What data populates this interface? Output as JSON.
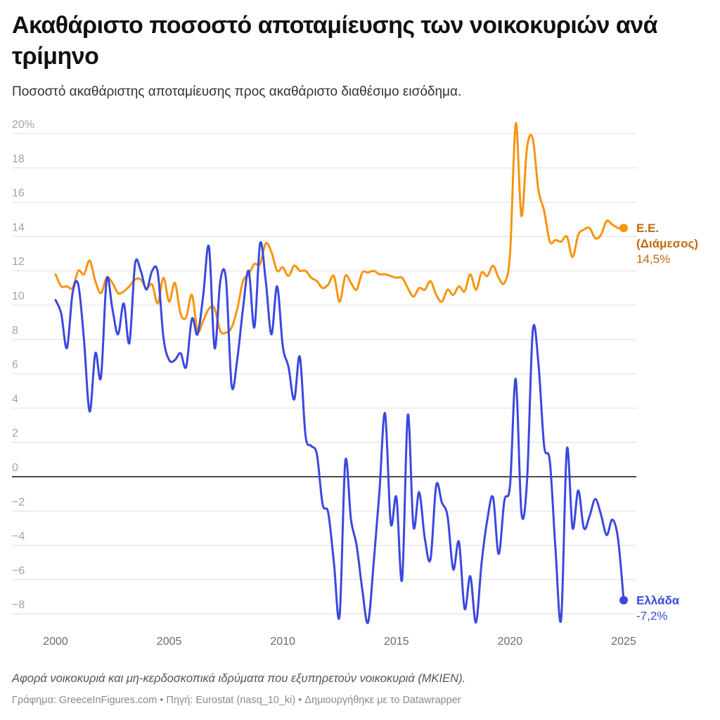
{
  "header": {
    "title": "Ακαθάριστο ποσοστό αποταμίευσης των νοικοκυριών ανά τρίμηνο",
    "subtitle": "Ποσοστό ακαθάριστης αποταμίευσης προς ακαθάριστο διαθέσιμο εισόδημα."
  },
  "footer": {
    "notes": "Αφορά νοικοκυριά και μη-κερδοσκοπικά ιδρύματα που εξυπηρετούν νοικοκυριά (ΜΚΙΕΝ).",
    "byline": "Γράφημα: GreeceInFigures.com • Πηγή: Eurostat (nasq_10_ki) • Δημιουργήθηκε με το Datawrapper"
  },
  "colors": {
    "eu_line": "#f7940f",
    "eu_label": "#c2690c",
    "greece_line": "#3b47e0",
    "greece_label": "#3b47e0",
    "grid": "#e6e6e6",
    "zero_line": "#333333"
  },
  "chart_data": {
    "type": "line",
    "title": "Ακαθάριστο ποσοστό αποταμίευσης των νοικοκυριών ανά τρίμηνο",
    "xlabel": "",
    "ylabel": "",
    "x_start": "2000Q1",
    "x_end": "2025Q1",
    "x_step": "quarter",
    "xlim": [
      2000,
      2025
    ],
    "ylim": [
      -8.6,
      20
    ],
    "y_ticks": [
      20,
      18,
      16,
      14,
      12,
      10,
      8,
      6,
      4,
      2,
      0,
      -2,
      -4,
      -6,
      -8
    ],
    "y_tick_labels": [
      "20%",
      "18",
      "16",
      "14",
      "12",
      "10",
      "8",
      "6",
      "4",
      "2",
      "0",
      "−2",
      "−4",
      "−6",
      "−8"
    ],
    "x_ticks": [
      2000,
      2005,
      2010,
      2015,
      2020,
      2025
    ],
    "x_tick_labels": [
      "2000",
      "2005",
      "2010",
      "2015",
      "2020",
      "2025"
    ],
    "grid": true,
    "legend": "direct-labels-right",
    "series": [
      {
        "name": "Ε.Ε. (Διάμεσος)",
        "label_lines": [
          "Ε.Ε.",
          "(Διάμεσος)"
        ],
        "last_value_label": "14,5%",
        "values": [
          11.8,
          11.1,
          11.1,
          11.0,
          12.0,
          11.8,
          12.6,
          11.4,
          10.7,
          11.6,
          11.3,
          10.7,
          10.8,
          11.1,
          11.5,
          11.5,
          11.0,
          11.2,
          10.1,
          11.6,
          10.2,
          11.3,
          9.5,
          9.3,
          10.6,
          8.5,
          9.1,
          9.8,
          9.8,
          8.5,
          8.4,
          8.7,
          9.8,
          11.4,
          11.8,
          12.4,
          12.4,
          13.6,
          13.1,
          12.0,
          12.2,
          11.7,
          12.3,
          12.0,
          12.0,
          11.6,
          11.4,
          11.0,
          11.2,
          11.7,
          10.2,
          11.7,
          11.3,
          10.9,
          11.9,
          11.9,
          12.0,
          11.8,
          11.8,
          11.7,
          11.6,
          11.6,
          11.0,
          10.5,
          11.0,
          10.9,
          11.4,
          10.6,
          10.2,
          10.9,
          10.6,
          11.1,
          10.8,
          11.8,
          10.9,
          11.9,
          11.7,
          12.3,
          11.6,
          11.3,
          13.0,
          20.6,
          15.2,
          19.2,
          19.7,
          16.7,
          15.5,
          13.7,
          13.8,
          13.7,
          14.0,
          12.8,
          14.1,
          14.4,
          14.5,
          13.9,
          14.1,
          14.9,
          14.7,
          14.5,
          14.5
        ]
      },
      {
        "name": "Ελλάδα",
        "label_lines": [
          "Ελλάδα"
        ],
        "last_value_label": "-7,2%",
        "values": [
          10.3,
          9.5,
          7.5,
          10.7,
          11.2,
          8.0,
          3.8,
          7.2,
          5.8,
          11.5,
          9.8,
          8.3,
          10.1,
          7.8,
          12.4,
          12.0,
          10.9,
          12.0,
          11.9,
          8.1,
          6.8,
          6.8,
          7.2,
          6.4,
          9.2,
          8.3,
          10.6,
          13.4,
          7.5,
          11.4,
          11.5,
          5.3,
          6.9,
          9.8,
          12.0,
          8.7,
          13.6,
          11.4,
          8.3,
          11.1,
          7.6,
          6.4,
          4.5,
          7.0,
          2.4,
          1.8,
          1.3,
          -1.6,
          -2.1,
          -5.0,
          -8.1,
          0.9,
          -2.5,
          -4.0,
          -6.6,
          -8.5,
          -5.0,
          -0.9,
          3.7,
          -2.7,
          -1.2,
          -6.0,
          3.6,
          -2.9,
          -0.9,
          -3.6,
          -4.8,
          -0.5,
          -1.5,
          -2.3,
          -5.4,
          -3.8,
          -7.7,
          -5.8,
          -8.5,
          -5.0,
          -2.5,
          -1.2,
          -4.5,
          -1.4,
          -0.5,
          5.7,
          -2.1,
          -0.2,
          8.5,
          6.6,
          1.8,
          0.9,
          -4.2,
          -8.3,
          1.6,
          -3.0,
          -0.8,
          -3.0,
          -2.3,
          -1.3,
          -2.2,
          -3.4,
          -2.5,
          -3.6,
          -7.2
        ]
      }
    ]
  }
}
